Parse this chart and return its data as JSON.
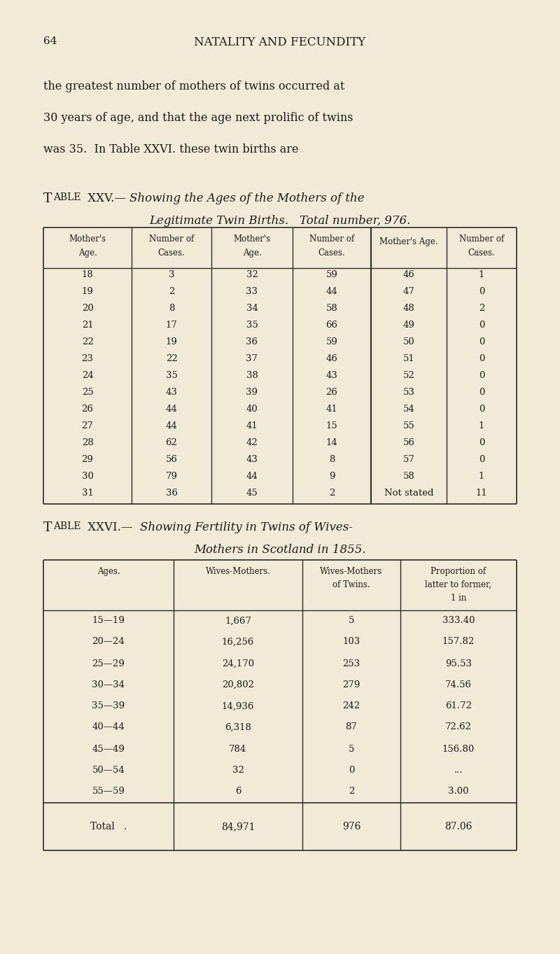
{
  "background_color": "#f0ead6",
  "page_number": "64",
  "page_header": "NATALITY AND FECUNDITY",
  "body_text_lines": [
    "the greatest number of mothers of twins occurred at",
    "30 years of age, and that the age next prolific of twins",
    "was 35.  In Table XXVI. these twin births are"
  ],
  "table25_col1_ages": [
    18,
    19,
    20,
    21,
    22,
    23,
    24,
    25,
    26,
    27,
    28,
    29,
    30,
    31
  ],
  "table25_col1_cases": [
    3,
    2,
    8,
    17,
    19,
    22,
    35,
    43,
    44,
    44,
    62,
    56,
    79,
    36
  ],
  "table25_col2_ages": [
    32,
    33,
    34,
    35,
    36,
    37,
    38,
    39,
    40,
    41,
    42,
    43,
    44,
    45
  ],
  "table25_col2_cases": [
    59,
    44,
    58,
    66,
    59,
    46,
    43,
    26,
    41,
    15,
    14,
    8,
    9,
    2
  ],
  "table25_col3_ages": [
    46,
    47,
    48,
    49,
    50,
    51,
    52,
    53,
    54,
    55,
    56,
    57,
    58,
    "Not stated"
  ],
  "table25_col3_cases": [
    1,
    0,
    2,
    0,
    0,
    0,
    0,
    0,
    0,
    1,
    0,
    0,
    1,
    11
  ],
  "table26_ages": [
    "15—19",
    "20—24",
    "25—29",
    "30—34",
    "35—39",
    "40—44",
    "45—49",
    "50—54",
    "55—59"
  ],
  "table26_wives_mothers": [
    "1,667",
    "16,256",
    "24,170",
    "20,802",
    "14,936",
    "6,318",
    "784",
    "32",
    "6"
  ],
  "table26_wives_mothers_twins": [
    "5",
    "103",
    "253",
    "279",
    "242",
    "87",
    "5",
    "0",
    "2"
  ],
  "table26_proportion": [
    "333.40",
    "157.82",
    "95.53",
    "74.56",
    "61.72",
    "72.62",
    "156.80",
    "...",
    "3.00"
  ],
  "table26_total_wm": "84,971",
  "table26_total_wmt": "976",
  "table26_total_prop": "87.06"
}
